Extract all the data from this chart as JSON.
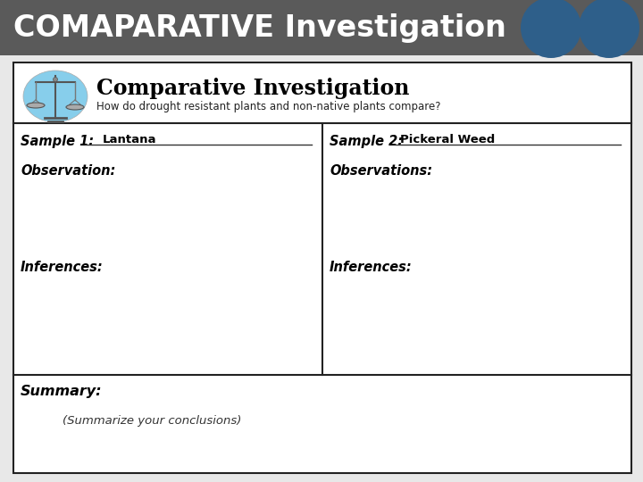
{
  "header_bg_color": "#5a5a5a",
  "header_text": "COMAPARATIVE Investigation",
  "header_text_color": "#ffffff",
  "header_font_size": 24,
  "circle_color": "#2e5f8a",
  "card_bg": "#ffffff",
  "card_border_color": "#222222",
  "card_title": "Comparative Investigation",
  "card_subtitle": "How do drought resistant plants and non-native plants compare?",
  "sample1_label": "Sample 1:",
  "sample1_value": "Lantana",
  "sample2_label": "Sample 2:",
  "sample2_value": "Pickeral Weed",
  "observation_left": "Observation:",
  "observation_right": "Observations:",
  "inferences_left": "Inferences:",
  "inferences_right": "Inferences:",
  "summary_label": "Summary:",
  "summary_detail": "(Summarize your conclusions)",
  "page_bg": "#e8e8e8"
}
